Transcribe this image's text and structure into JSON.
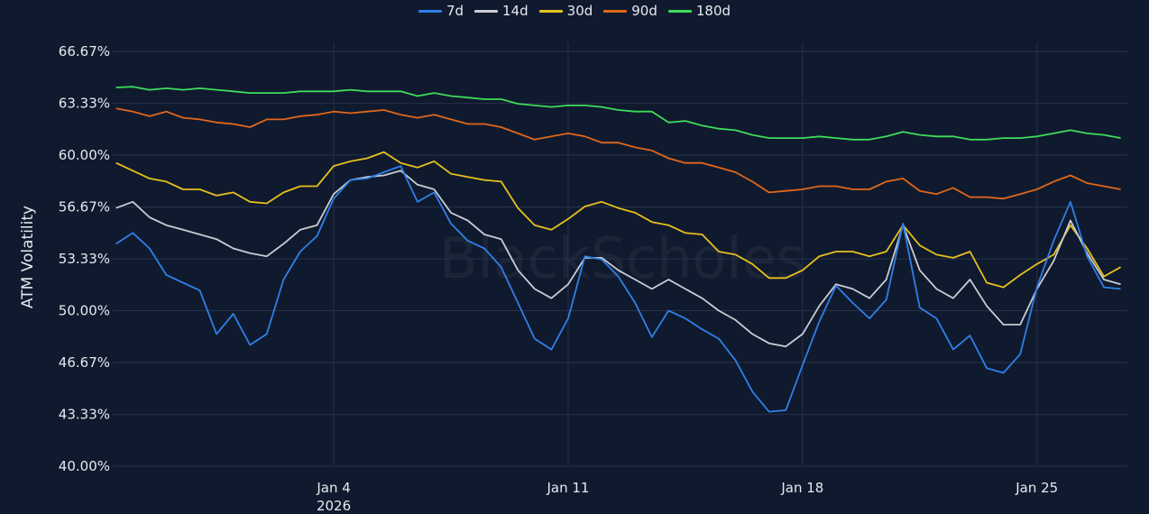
{
  "chart_data": {
    "type": "line",
    "title": "",
    "xlabel": "",
    "ylabel": "ATM Volatility",
    "watermark": "BlackScholes",
    "x_unit": "days from Jan 4 2026",
    "x_start": -6.5,
    "x_step": 0.5,
    "xlim": [
      -6.6,
      23.7
    ],
    "ylim": [
      40,
      66.67
    ],
    "grid": true,
    "legend_position": "top-center",
    "y_ticks": [
      {
        "value": 66.67,
        "label": "66.67%"
      },
      {
        "value": 63.33,
        "label": "63.33%"
      },
      {
        "value": 60.0,
        "label": "60.00%"
      },
      {
        "value": 56.67,
        "label": "56.67%"
      },
      {
        "value": 53.33,
        "label": "53.33%"
      },
      {
        "value": 50.0,
        "label": "50.00%"
      },
      {
        "value": 46.67,
        "label": "46.67%"
      },
      {
        "value": 43.33,
        "label": "43.33%"
      },
      {
        "value": 40.0,
        "label": "40.00%"
      }
    ],
    "x_ticks": [
      {
        "value": 0,
        "label": "Jan 4",
        "sublabel": "2026"
      },
      {
        "value": 7,
        "label": "Jan 11",
        "sublabel": ""
      },
      {
        "value": 14,
        "label": "Jan 18",
        "sublabel": ""
      },
      {
        "value": 21,
        "label": "Jan 25",
        "sublabel": ""
      }
    ],
    "series": [
      {
        "name": "7d",
        "color": "#2f7fe8",
        "values": [
          54.3,
          55.0,
          54.0,
          52.3,
          51.8,
          51.3,
          48.5,
          49.8,
          47.8,
          48.5,
          52.0,
          53.8,
          54.8,
          57.2,
          58.4,
          58.5,
          58.9,
          59.3,
          57.0,
          57.6,
          55.6,
          54.5,
          54.0,
          52.8,
          50.5,
          48.2,
          47.5,
          49.5,
          53.5,
          53.3,
          52.2,
          50.5,
          48.3,
          50.0,
          49.5,
          48.8,
          48.2,
          46.8,
          44.8,
          43.5,
          43.6,
          46.5,
          49.3,
          51.6,
          50.5,
          49.5,
          50.7,
          55.6,
          50.2,
          49.5,
          47.5,
          48.4,
          46.3,
          46.0,
          47.2,
          51.5,
          54.5,
          57.0,
          53.5,
          51.5,
          51.4
        ]
      },
      {
        "name": "14d",
        "color": "#c9ccd3",
        "values": [
          56.6,
          57.0,
          56.0,
          55.5,
          55.2,
          54.9,
          54.6,
          54.0,
          53.7,
          53.5,
          54.3,
          55.2,
          55.5,
          57.5,
          58.4,
          58.6,
          58.7,
          59.0,
          58.1,
          57.8,
          56.3,
          55.8,
          54.9,
          54.6,
          52.6,
          51.4,
          50.8,
          51.7,
          53.4,
          53.4,
          52.6,
          52.0,
          51.4,
          52.0,
          51.4,
          50.8,
          50.0,
          49.4,
          48.5,
          47.9,
          47.7,
          48.5,
          50.3,
          51.7,
          51.4,
          50.8,
          52.0,
          55.5,
          52.6,
          51.4,
          50.8,
          52.0,
          50.3,
          49.1,
          49.1,
          51.4,
          53.2,
          55.8,
          53.7,
          52.0,
          51.7
        ]
      },
      {
        "name": "30d",
        "color": "#e6c01e",
        "values": [
          59.5,
          59.0,
          58.5,
          58.3,
          57.8,
          57.8,
          57.4,
          57.6,
          57.0,
          56.9,
          57.6,
          58.0,
          58.0,
          59.3,
          59.6,
          59.8,
          60.2,
          59.5,
          59.2,
          59.6,
          58.8,
          58.6,
          58.4,
          58.3,
          56.6,
          55.5,
          55.2,
          55.9,
          56.7,
          57.0,
          56.6,
          56.3,
          55.7,
          55.5,
          55.0,
          54.9,
          53.8,
          53.6,
          53.0,
          52.1,
          52.1,
          52.6,
          53.5,
          53.8,
          53.8,
          53.5,
          53.8,
          55.5,
          54.2,
          53.6,
          53.4,
          53.8,
          51.8,
          51.5,
          52.3,
          53.0,
          53.6,
          55.5,
          54.0,
          52.2,
          52.8
        ]
      },
      {
        "name": "90d",
        "color": "#e0671c",
        "values": [
          63.0,
          62.8,
          62.5,
          62.8,
          62.4,
          62.3,
          62.1,
          62.0,
          61.8,
          62.3,
          62.3,
          62.5,
          62.6,
          62.8,
          62.7,
          62.8,
          62.9,
          62.6,
          62.4,
          62.6,
          62.3,
          62.0,
          62.0,
          61.8,
          61.4,
          61.0,
          61.2,
          61.4,
          61.2,
          60.8,
          60.8,
          60.5,
          60.3,
          59.8,
          59.5,
          59.5,
          59.2,
          58.9,
          58.3,
          57.6,
          57.7,
          57.8,
          58.0,
          58.0,
          57.8,
          57.8,
          58.3,
          58.5,
          57.7,
          57.5,
          57.9,
          57.3,
          57.3,
          57.2,
          57.5,
          57.8,
          58.3,
          58.7,
          58.2,
          58.0,
          57.8
        ]
      },
      {
        "name": "180d",
        "color": "#3ddc5a",
        "values": [
          64.35,
          64.4,
          64.2,
          64.3,
          64.2,
          64.3,
          64.2,
          64.1,
          64.0,
          64.0,
          64.0,
          64.1,
          64.1,
          64.1,
          64.2,
          64.1,
          64.1,
          64.1,
          63.8,
          64.0,
          63.8,
          63.7,
          63.6,
          63.6,
          63.3,
          63.2,
          63.1,
          63.2,
          63.2,
          63.1,
          62.9,
          62.8,
          62.8,
          62.1,
          62.2,
          61.9,
          61.7,
          61.6,
          61.3,
          61.1,
          61.1,
          61.1,
          61.2,
          61.1,
          61.0,
          61.0,
          61.2,
          61.5,
          61.3,
          61.2,
          61.2,
          61.0,
          61.0,
          61.1,
          61.1,
          61.2,
          61.4,
          61.6,
          61.4,
          61.3,
          61.1
        ]
      }
    ]
  }
}
